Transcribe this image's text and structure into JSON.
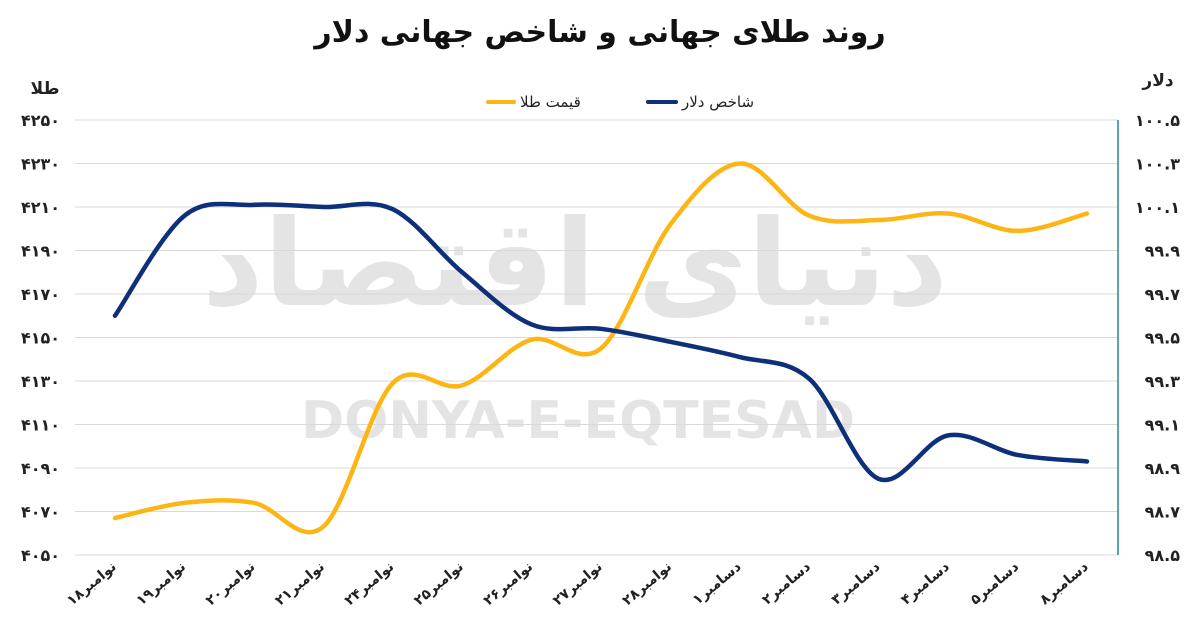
{
  "title": "روند طلای جهانی و شاخص جهانی دلار",
  "colors": {
    "gold": "#FDB515",
    "dollar": "#0E2F7A",
    "grid": "#D9D9D9",
    "right_axis": "#1E8C8A"
  },
  "watermark": {
    "logo_text": "دنیای اقتصاد",
    "latin_text": "DONYA-E-EQTESAD"
  },
  "chart_data": {
    "type": "line",
    "title": "روند طلای جهانی و شاخص جهانی دلار",
    "y_left_label": "طلا",
    "y_right_label": "دلار",
    "left_axis": {
      "ylim": [
        4050,
        4250
      ],
      "ticks": [
        4050,
        4070,
        4090,
        4110,
        4130,
        4150,
        4170,
        4190,
        4210,
        4230,
        4250
      ],
      "tick_labels": [
        "۴۰۵۰",
        "۴۰۷۰",
        "۴۰۹۰",
        "۴۱۱۰",
        "۴۱۳۰",
        "۴۱۵۰",
        "۴۱۷۰",
        "۴۱۹۰",
        "۴۲۱۰",
        "۴۲۳۰",
        "۴۲۵۰"
      ]
    },
    "right_axis": {
      "ylim": [
        98.5,
        100.5
      ],
      "ticks": [
        98.5,
        98.7,
        98.9,
        99.1,
        99.3,
        99.5,
        99.7,
        99.9,
        100.1,
        100.3,
        100.5
      ],
      "tick_labels": [
        "۹۸.۵",
        "۹۸.۷",
        "۹۸.۹",
        "۹۹.۱",
        "۹۹.۳",
        "۹۹.۵",
        "۹۹.۷",
        "۹۹.۹",
        "۱۰۰.۱",
        "۱۰۰.۳",
        "۱۰۰.۵"
      ]
    },
    "categories": [
      "۱۸نوامبر",
      "۱۹نوامبر",
      "۲۰نوامبر",
      "۲۱نوامبر",
      "۲۴نوامبر",
      "۲۵نوامبر",
      "۲۶نوامبر",
      "۲۷نوامبر",
      "۲۸نوامبر",
      "۱دسامبر",
      "۲دسامبر",
      "۳دسامبر",
      "۴دسامبر",
      "۵دسامبر",
      "۸دسامبر"
    ],
    "series": [
      {
        "name": "قیمت طلا",
        "axis": "left",
        "color": "#FDB515",
        "values": [
          4067,
          4074,
          4074,
          4063,
          4129,
          4128,
          4149,
          4145,
          4202,
          4230,
          4206,
          4204,
          4207,
          4199,
          4207
        ]
      },
      {
        "name": "شاخص دلار",
        "axis": "right",
        "color": "#0E2F7A",
        "values": [
          99.6,
          100.06,
          100.11,
          100.1,
          100.09,
          99.8,
          99.56,
          99.54,
          99.48,
          99.41,
          99.31,
          98.85,
          99.05,
          98.96,
          98.93
        ]
      }
    ],
    "legend_position": "top-center",
    "grid": true
  }
}
